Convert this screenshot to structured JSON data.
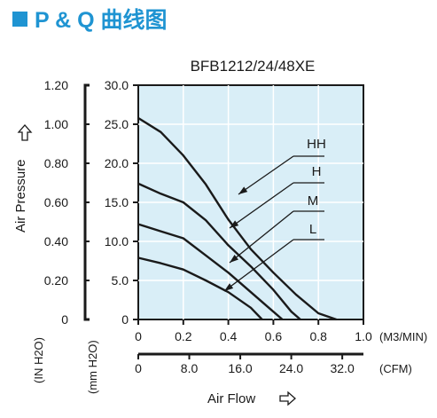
{
  "page": {
    "heading": "P & Q 曲线图"
  },
  "colors": {
    "accent": "#1f94d2",
    "plot_bg": "#d9eef7",
    "grid": "#ffffff",
    "curve": "#1a1a1a"
  },
  "chart_data": {
    "type": "line",
    "title": "BFB1212/24/48XE",
    "ylabel": "Air Pressure",
    "ylabel_unit_in": "(IN H2O)",
    "ylabel_unit_mm": "(mm H2O)",
    "xlabel": "Air Flow",
    "x_unit_m3": "(M3/MIN)",
    "x_unit_cfm": "(CFM)",
    "x_ticks_m3": [
      "0",
      "0.2",
      "0.4",
      "0.6",
      "0.8",
      "1.0"
    ],
    "x_ticks_cfm": [
      "0",
      "8.0",
      "16.0",
      "24.0",
      "32.0"
    ],
    "y_ticks_in": [
      "0",
      "0.20",
      "0.40",
      "0.60",
      "0.80",
      "1.00",
      "1.20"
    ],
    "y_ticks_mm": [
      "0",
      "5.0",
      "10.0",
      "15.0",
      "20.0",
      "25.0",
      "30.0"
    ],
    "xlim": [
      0,
      1.0
    ],
    "ylim": [
      0,
      30
    ],
    "grid": true,
    "series": [
      {
        "name": "HH",
        "points": [
          [
            0,
            25.8
          ],
          [
            0.1,
            24
          ],
          [
            0.2,
            21
          ],
          [
            0.3,
            17.3
          ],
          [
            0.4,
            12.8
          ],
          [
            0.5,
            9
          ],
          [
            0.6,
            6
          ],
          [
            0.7,
            3.2
          ],
          [
            0.8,
            0.8
          ],
          [
            0.88,
            0
          ]
        ]
      },
      {
        "name": "H",
        "points": [
          [
            0,
            17.4
          ],
          [
            0.1,
            16.1
          ],
          [
            0.2,
            15
          ],
          [
            0.3,
            12.7
          ],
          [
            0.4,
            9.5
          ],
          [
            0.5,
            6.8
          ],
          [
            0.6,
            3.8
          ],
          [
            0.68,
            1
          ],
          [
            0.72,
            0
          ]
        ]
      },
      {
        "name": "M",
        "points": [
          [
            0,
            12.2
          ],
          [
            0.1,
            11.3
          ],
          [
            0.2,
            10.4
          ],
          [
            0.3,
            8.2
          ],
          [
            0.4,
            6
          ],
          [
            0.5,
            3.5
          ],
          [
            0.58,
            1.5
          ],
          [
            0.64,
            0
          ]
        ]
      },
      {
        "name": "L",
        "points": [
          [
            0,
            7.9
          ],
          [
            0.1,
            7.2
          ],
          [
            0.2,
            6.4
          ],
          [
            0.3,
            5
          ],
          [
            0.4,
            3.5
          ],
          [
            0.5,
            1.5
          ],
          [
            0.55,
            0
          ]
        ]
      }
    ],
    "labels": [
      "HH",
      "H",
      "M",
      "L"
    ]
  }
}
